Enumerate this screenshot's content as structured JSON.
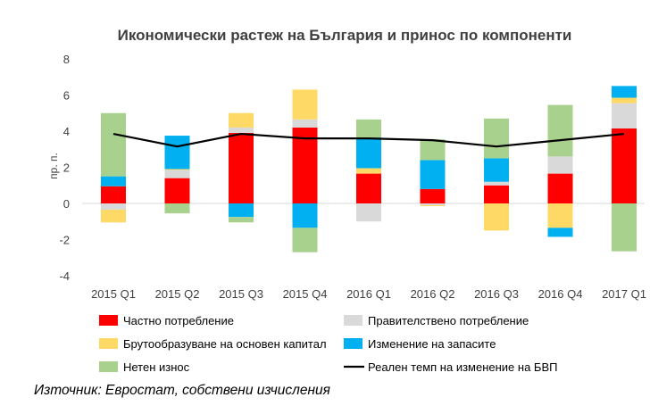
{
  "chart_data": {
    "type": "bar",
    "stacked": true,
    "title": "Икономически растеж на България и принос по компоненти",
    "ylabel": "пр. п.",
    "xlabel": "",
    "ylim": [
      -4,
      8
    ],
    "yticks": [
      8,
      6,
      4,
      2,
      0,
      -2,
      -4
    ],
    "categories": [
      "2015 Q1",
      "2015 Q2",
      "2015 Q3",
      "2015 Q4",
      "2016 Q1",
      "2016 Q2",
      "2016 Q3",
      "2016 Q4",
      "2017 Q1"
    ],
    "series": [
      {
        "name": "Частно потребление",
        "key": "private",
        "color": "#FF0000",
        "values": [
          0.95,
          1.4,
          3.9,
          4.2,
          1.65,
          0.8,
          1.0,
          1.65,
          4.15
        ]
      },
      {
        "name": "Правителствено потребление",
        "key": "government",
        "color": "#D9D9D9",
        "values": [
          -0.35,
          0.45,
          0.3,
          0.45,
          -1.0,
          -0.1,
          0.2,
          0.95,
          1.4
        ]
      },
      {
        "name": "Брутообразуване на основен капитал",
        "key": "gfcf",
        "color": "#FFD966",
        "values": [
          -0.7,
          0.05,
          0.8,
          1.65,
          0.3,
          -0.05,
          -1.5,
          -1.35,
          0.3
        ]
      },
      {
        "name": "Изменение на запасите",
        "key": "inventories",
        "color": "#00B0F0",
        "values": [
          0.55,
          1.85,
          -0.75,
          -1.35,
          1.7,
          1.6,
          1.3,
          -0.5,
          0.65
        ]
      },
      {
        "name": "Нетен износ",
        "key": "netexports",
        "color": "#A9D18E",
        "values": [
          3.5,
          -0.55,
          -0.3,
          -1.35,
          1.0,
          1.15,
          2.2,
          2.85,
          -2.65
        ]
      }
    ],
    "line": {
      "name": "Реален темп на изменение на БВП",
      "color": "#000000",
      "values": [
        3.85,
        3.15,
        3.85,
        3.6,
        3.6,
        3.5,
        3.15,
        3.5,
        3.85
      ]
    },
    "legend": "bottom"
  },
  "source": "Източник: Евростат, собствени изчисления"
}
